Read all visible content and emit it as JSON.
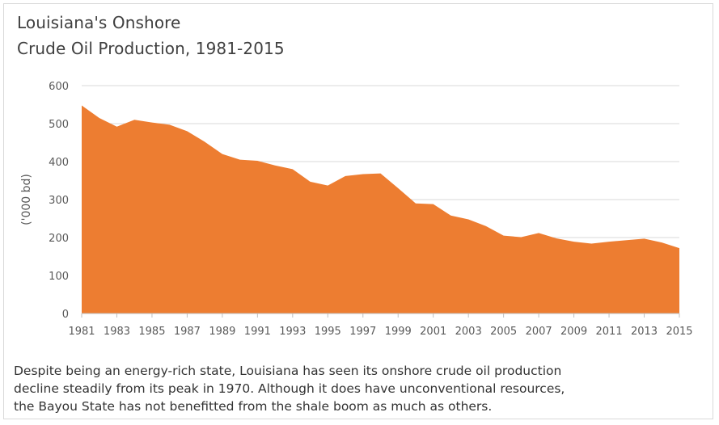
{
  "chart_data": {
    "type": "area",
    "title": "Louisiana's Onshore",
    "subtitle": "Crude Oil Production, 1981-2015",
    "xlabel": "",
    "ylabel": "('000 bd)",
    "ylim": [
      0,
      600
    ],
    "yticks": [
      "0",
      "100",
      "200",
      "300",
      "400",
      "500",
      "600"
    ],
    "xticks": [
      "1981",
      "1983",
      "1985",
      "1987",
      "1989",
      "1991",
      "1993",
      "1995",
      "1997",
      "1999",
      "2001",
      "2003",
      "2005",
      "2007",
      "2009",
      "2011",
      "2013",
      "2015"
    ],
    "grid": true,
    "color": "#ED7D31",
    "x": [
      1981,
      1982,
      1983,
      1984,
      1985,
      1986,
      1987,
      1988,
      1989,
      1990,
      1991,
      1992,
      1993,
      1994,
      1995,
      1996,
      1997,
      1998,
      1999,
      2000,
      2001,
      2002,
      2003,
      2004,
      2005,
      2006,
      2007,
      2008,
      2009,
      2010,
      2011,
      2012,
      2013,
      2014,
      2015
    ],
    "values": [
      548,
      515,
      492,
      510,
      503,
      497,
      480,
      452,
      420,
      405,
      402,
      390,
      380,
      347,
      337,
      362,
      367,
      369,
      330,
      290,
      288,
      258,
      248,
      230,
      205,
      201,
      212,
      198,
      189,
      184,
      189,
      193,
      197,
      187,
      172
    ]
  },
  "caption": "Despite being an energy-rich state, Louisiana has seen its onshore crude oil production decline steadily from its peak in 1970. Although it does have unconventional resources, the Bayou State has not benefitted from the shale boom as much as others."
}
